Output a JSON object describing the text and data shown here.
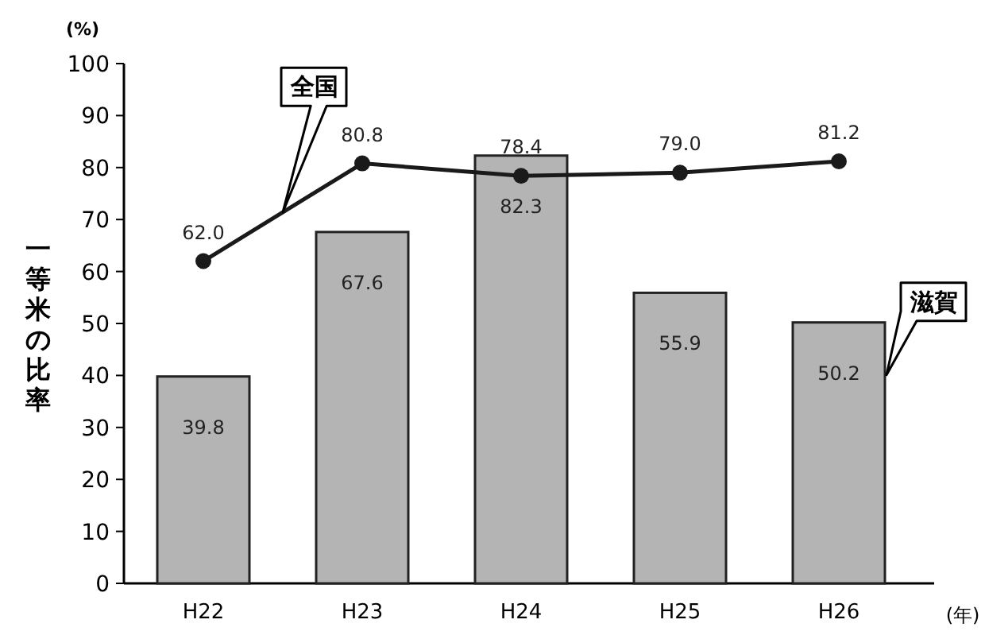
{
  "chart_data": {
    "type": "bar",
    "ylabel": "一等米の比率",
    "xlabel": "(年)",
    "annotations": [
      "(%)"
    ],
    "categories": [
      "H22",
      "H23",
      "H24",
      "H25",
      "H26"
    ],
    "series": [
      {
        "name": "滋賀",
        "color": "#b4b4b4",
        "values": [
          39.8,
          67.6,
          82.3,
          55.9,
          50.2
        ],
        "value_labels": [
          "39.8",
          "67.6",
          "82.3",
          "55.9",
          "50.2"
        ]
      },
      {
        "name": "全国",
        "type": "line",
        "color": "#1a1a1a",
        "marker": "circle",
        "values": [
          62.0,
          80.8,
          78.4,
          79.0,
          81.2
        ],
        "value_labels": [
          "62.0",
          "80.8",
          "78.4",
          "79.0",
          "81.2"
        ]
      }
    ],
    "ylim": [
      0,
      100
    ],
    "yticks": [
      0,
      10,
      20,
      30,
      40,
      50,
      60,
      70,
      80,
      90,
      100
    ]
  }
}
